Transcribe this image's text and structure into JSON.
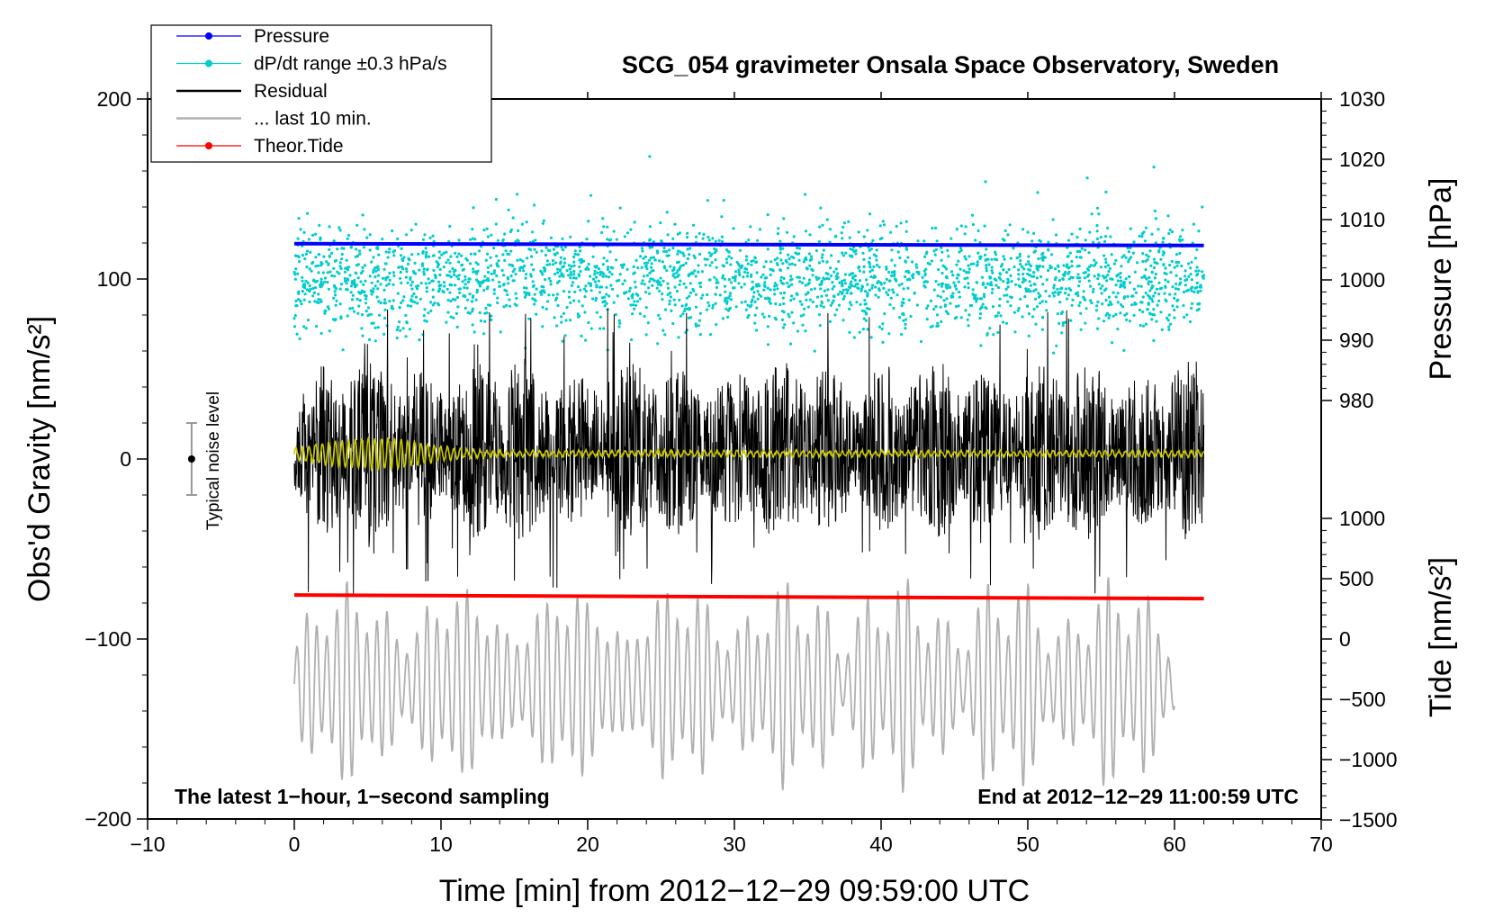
{
  "chart_data": {
    "type": "line",
    "title": "SCG_054 gravimeter Onsala Space Observatory, Sweden",
    "xlabel": "Time [min] from 2012−12−29 09:59:00 UTC",
    "ylabel_left": "Obs'd Gravity [nm/s²]",
    "ylabel_right_top": "Pressure [hPa]",
    "ylabel_right_bottom": "Tide [nm/s²]",
    "xlim": [
      -10,
      70
    ],
    "ylim": [
      -200,
      200
    ],
    "pressure_axis_range": [
      980,
      1030
    ],
    "tide_axis_range": [
      -1500,
      1000
    ],
    "x_ticks": [
      "−10",
      "0",
      "10",
      "20",
      "30",
      "40",
      "50",
      "60",
      "70"
    ],
    "y_ticks": [
      "−200",
      "−100",
      "0",
      "100",
      "200"
    ],
    "pressure_ticks": [
      "980",
      "990",
      "1000",
      "1010",
      "1020",
      "1030"
    ],
    "tide_ticks": [
      "−1500",
      "−1000",
      "−500",
      "0",
      "500",
      "1000"
    ],
    "legend": [
      {
        "label": "Pressure",
        "color": "#0000ff",
        "style": "line-dot"
      },
      {
        "label": "dP/dt range ±0.3 hPa/s",
        "color": "#00cccc",
        "style": "line-dot"
      },
      {
        "label": "Residual",
        "color": "#000000",
        "style": "line"
      },
      {
        "label": "... last 10 min.",
        "color": "#b0b0b0",
        "style": "line"
      },
      {
        "label": "Theor.Tide",
        "color": "#ff0000",
        "style": "line-dot"
      }
    ],
    "annotations": {
      "left": "The latest 1−hour, 1−second sampling",
      "right": "End at 2012−12−29 11:00:59 UTC",
      "noise": "Typical noise level"
    },
    "series": [
      {
        "name": "Pressure",
        "color": "#0000ff",
        "axis": "pressure",
        "x": [
          0,
          62
        ],
        "values": [
          1006.0,
          1005.7
        ]
      },
      {
        "name": "dP/dt range ±0.3 hPa/s",
        "color": "#00cccc",
        "axis": "left",
        "type": "scatter",
        "x_range": [
          0,
          62
        ],
        "center": 100,
        "spread": 25
      },
      {
        "name": "Residual",
        "color": "#000000",
        "axis": "left",
        "x_range": [
          0,
          62
        ],
        "center": 5,
        "amplitude_range": [
          -80,
          85
        ]
      },
      {
        "name": "... last 10 min.",
        "color": "#b0b0b0",
        "axis": "left",
        "x_range": [
          0,
          60
        ],
        "center": -125,
        "amplitude_range": [
          -190,
          -60
        ]
      },
      {
        "name": "Filtered",
        "color": "#c8c800",
        "axis": "left",
        "x_range": [
          0,
          62
        ],
        "center": 3
      },
      {
        "name": "Theor.Tide",
        "color": "#ff0000",
        "axis": "tide",
        "x": [
          0,
          62
        ],
        "values": [
          365,
          335
        ]
      }
    ],
    "noise_bar": {
      "x": -7,
      "center": 0,
      "range": [
        -20,
        20
      ]
    }
  }
}
